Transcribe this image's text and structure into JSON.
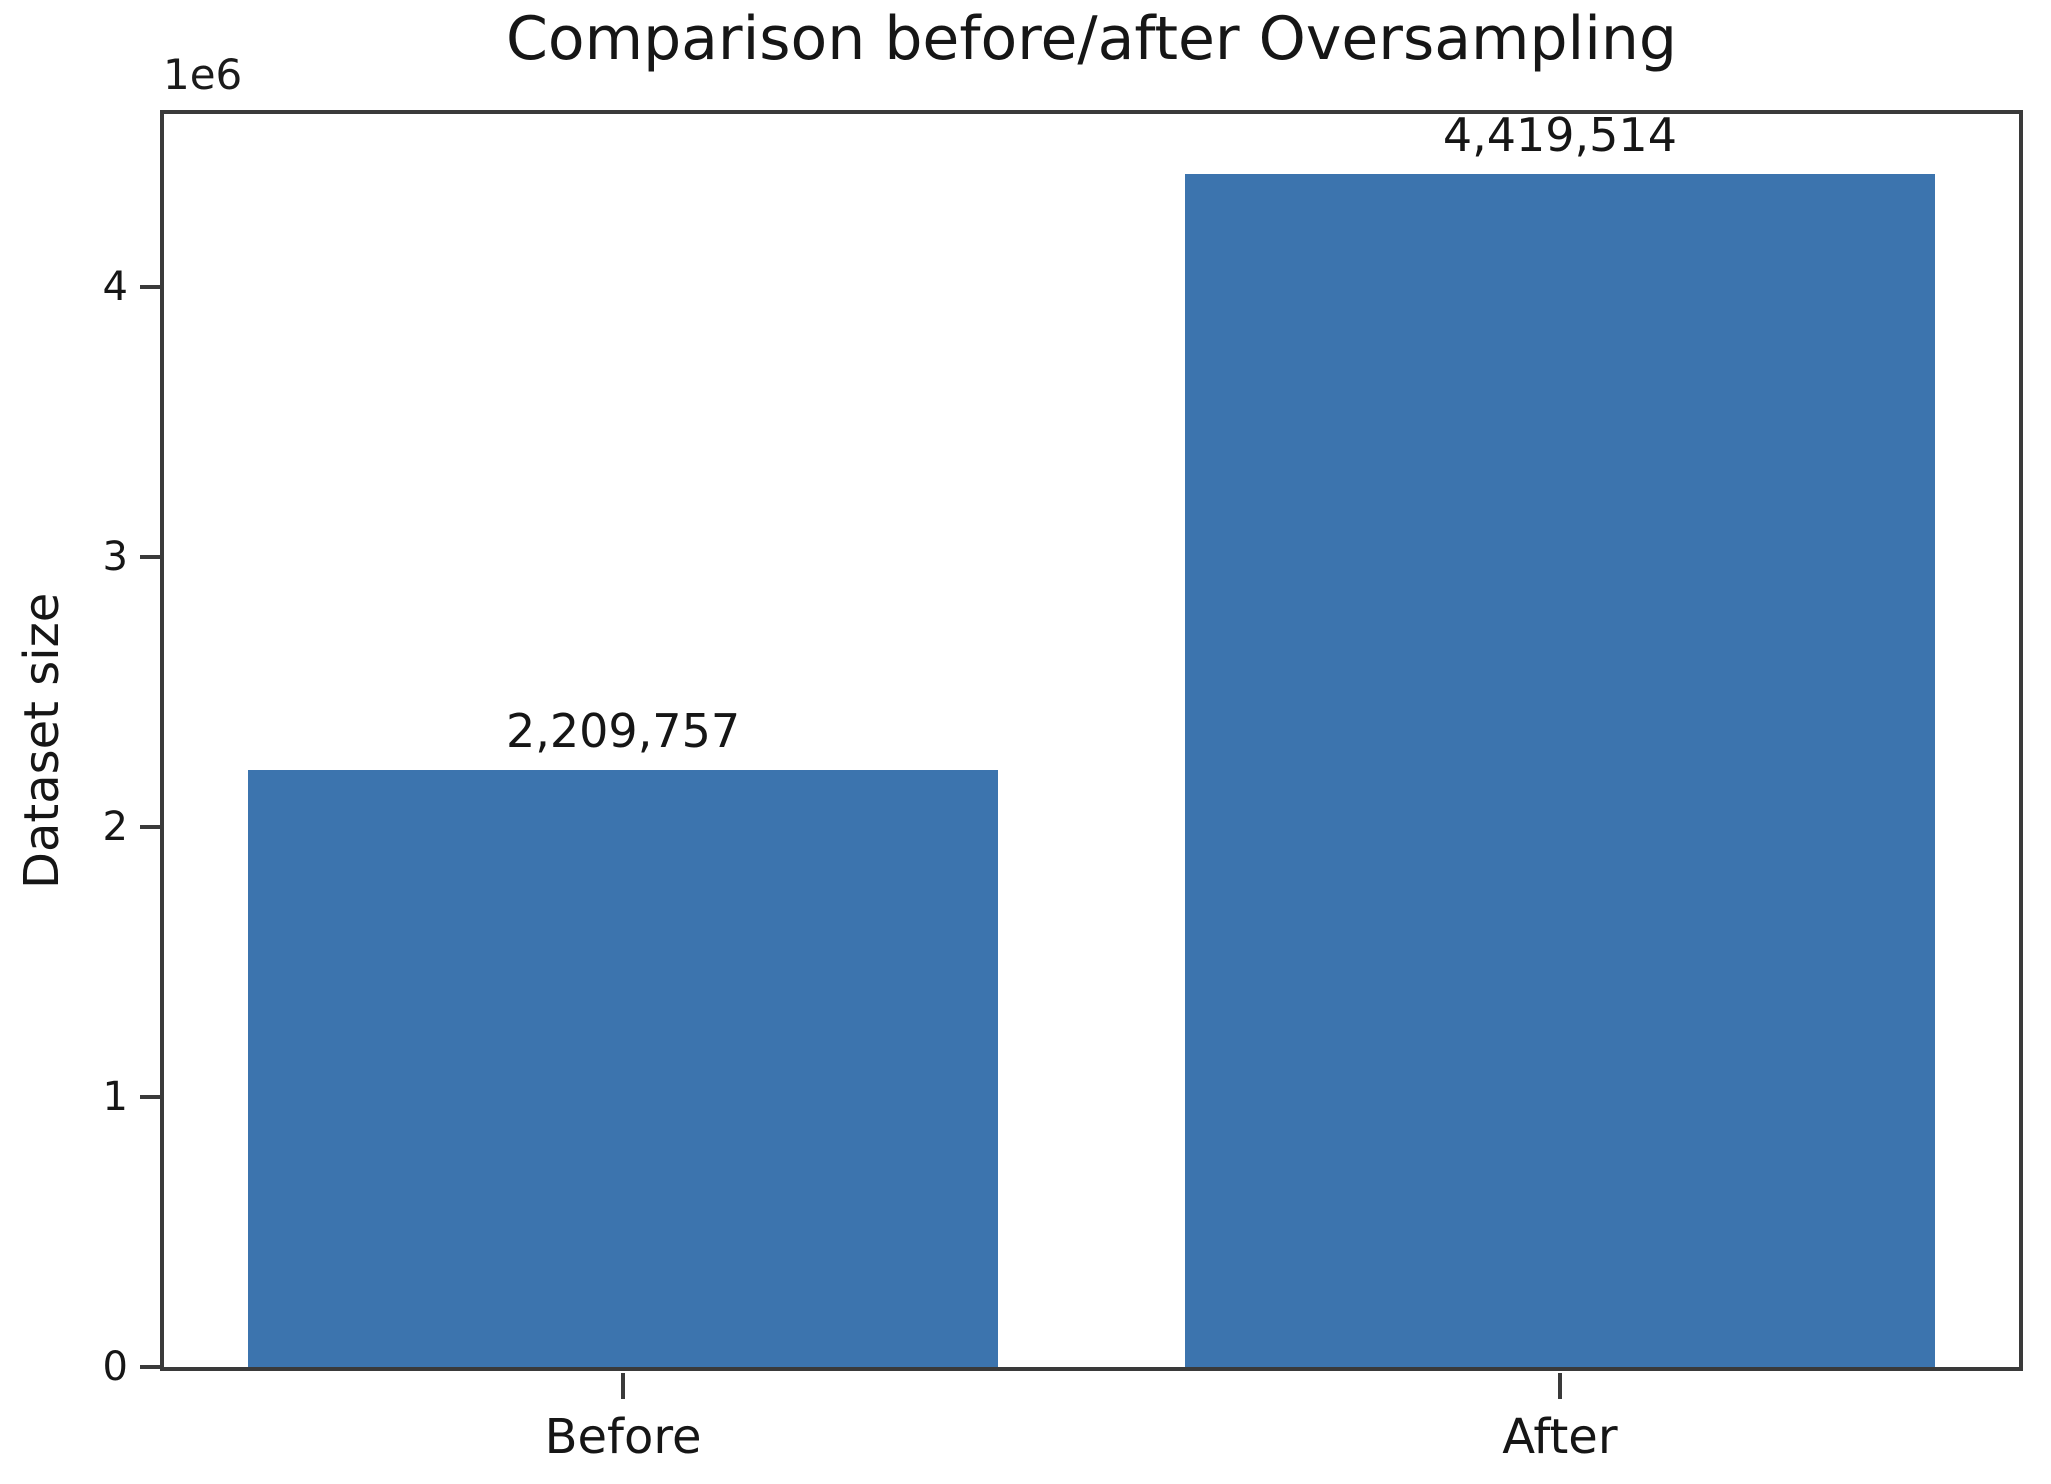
{
  "chart_data": {
    "type": "bar",
    "title": "Comparison before/after Oversampling",
    "xlabel": "",
    "ylabel": "Dataset size",
    "offset_text": "1e6",
    "categories": [
      "Before",
      "After"
    ],
    "values": [
      2209757,
      4419514
    ],
    "bar_labels": [
      "2,209,757",
      "4,419,514"
    ],
    "yticks": [
      0,
      1,
      2,
      3,
      4
    ],
    "ytick_unit": 1000000,
    "ylim": [
      0,
      4640000
    ],
    "xlim": [
      -0.49,
      1.49
    ],
    "bar_width": 0.8,
    "grid": false,
    "legend": null,
    "colors": {
      "bar": "#3c74ae",
      "spine": "#3a3a3a",
      "text": "#161616",
      "background": "#ffffff"
    }
  }
}
